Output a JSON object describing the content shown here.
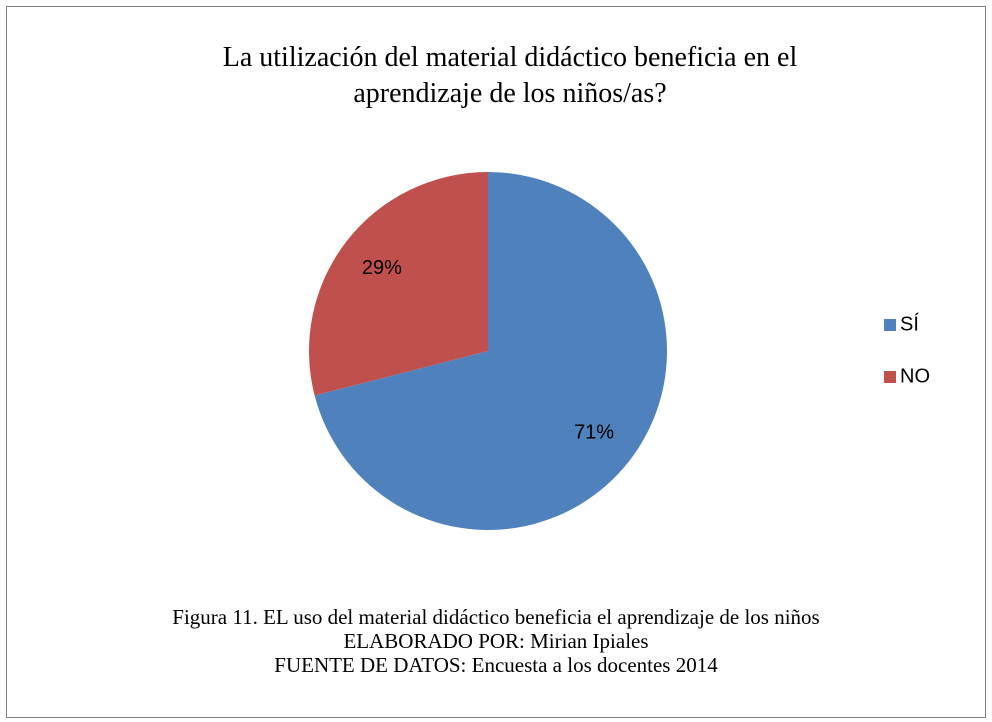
{
  "chart_data": {
    "type": "pie",
    "title": "La utilización del material didáctico beneficia en el aprendizaje de los niños/as?",
    "categories": [
      "SÍ",
      "NO"
    ],
    "values": [
      71,
      29
    ],
    "value_labels": [
      "71%",
      "29%"
    ],
    "colors": [
      "#4f81bd",
      "#c0504d"
    ],
    "legend": "right",
    "caption": [
      "Figura 11. EL uso del material didáctico beneficia el aprendizaje de los niños",
      "ELABORADO POR: Mirian Ipiales",
      "FUENTE DE DATOS: Encuesta a los  docentes 2014"
    ]
  }
}
